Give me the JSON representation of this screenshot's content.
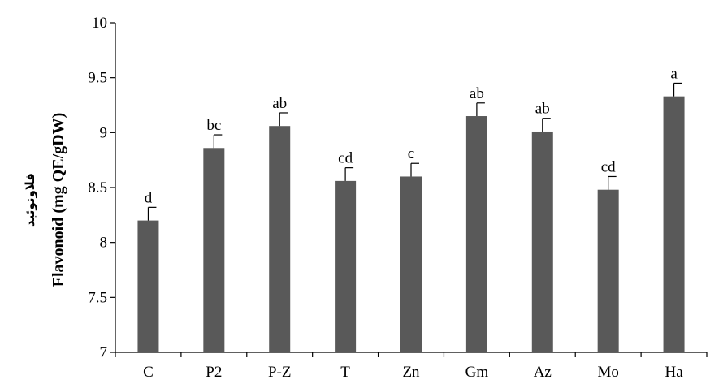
{
  "chart_data": {
    "type": "bar",
    "categories": [
      "C",
      "P2",
      "P-Z",
      "T",
      "Zn",
      "Gm",
      "Az",
      "Mo",
      "Ha"
    ],
    "values": [
      8.2,
      8.86,
      9.06,
      8.56,
      8.6,
      9.15,
      9.01,
      8.48,
      9.33
    ],
    "error_bars": [
      0.12,
      0.12,
      0.12,
      0.12,
      0.12,
      0.12,
      0.12,
      0.12,
      0.12
    ],
    "significance_letters": [
      "d",
      "bc",
      "ab",
      "cd",
      "c",
      "ab",
      "ab",
      "cd",
      "a"
    ],
    "ylabel": "Flavonoid (mg QE/gDW)",
    "ylabel_fa": "فلاونوئید",
    "ylim": [
      7,
      10
    ],
    "yticks": [
      "7",
      "7.5",
      "8",
      "8.5",
      "9",
      "9.5",
      "10"
    ],
    "grid": false,
    "bar_color": "#595959"
  }
}
